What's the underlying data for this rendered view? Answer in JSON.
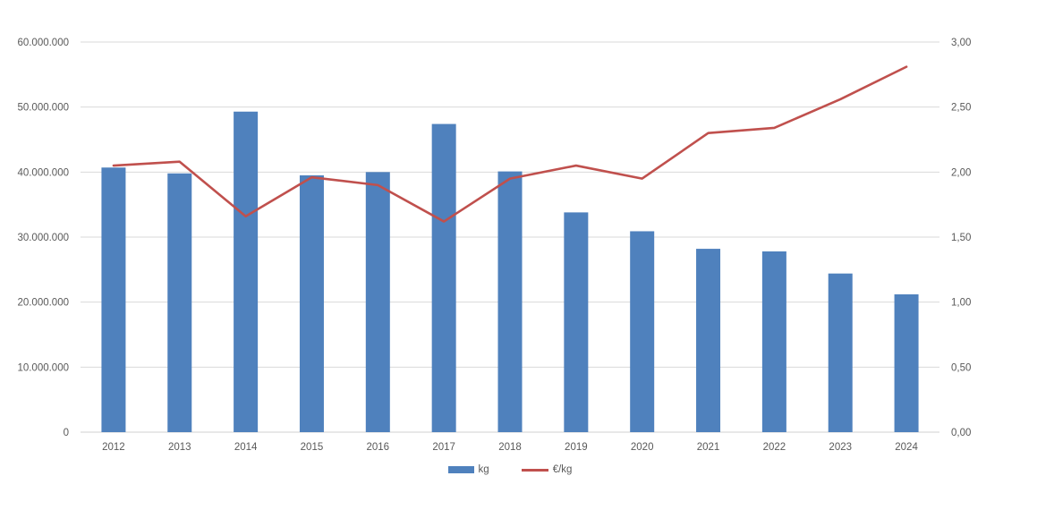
{
  "chart_data": {
    "type": "bar",
    "subtype": "combo-bar-line-dual-axis",
    "title": "",
    "categories": [
      "2012",
      "2013",
      "2014",
      "2015",
      "2016",
      "2017",
      "2018",
      "2019",
      "2020",
      "2021",
      "2022",
      "2023",
      "2024"
    ],
    "series": [
      {
        "name": "kg",
        "type": "bar",
        "axis": "left",
        "color": "#4F81BD",
        "values": [
          40700000,
          39800000,
          49300000,
          39500000,
          40000000,
          47400000,
          40100000,
          33800000,
          30900000,
          28200000,
          27800000,
          24400000,
          21200000
        ]
      },
      {
        "name": "€/kg",
        "type": "line",
        "axis": "right",
        "color": "#C0504D",
        "values": [
          2.05,
          2.08,
          1.66,
          1.96,
          1.9,
          1.62,
          1.95,
          2.05,
          1.95,
          2.3,
          2.34,
          2.56,
          2.81
        ]
      }
    ],
    "left_axis": {
      "min": 0,
      "max": 60000000,
      "tick_values": [
        0,
        10000000,
        20000000,
        30000000,
        40000000,
        50000000,
        60000000
      ],
      "tick_labels": [
        "0",
        "10.000.000",
        "20.000.000",
        "30.000.000",
        "40.000.000",
        "50.000.000",
        "60.000.000"
      ]
    },
    "right_axis": {
      "min": 0,
      "max": 3,
      "tick_values": [
        0,
        0.5,
        1,
        1.5,
        2,
        2.5,
        3
      ],
      "tick_labels": [
        "0,00",
        "0,50",
        "1,00",
        "1,50",
        "2,00",
        "2,50",
        "3,00"
      ]
    },
    "grid": true,
    "legend_position": "bottom"
  },
  "colors": {
    "bar": "#4F81BD",
    "line": "#C0504D",
    "gridline": "#D9D9D9",
    "axis_line": "#D0D0D0",
    "tick_text": "#595959",
    "background": "#FFFFFF"
  }
}
